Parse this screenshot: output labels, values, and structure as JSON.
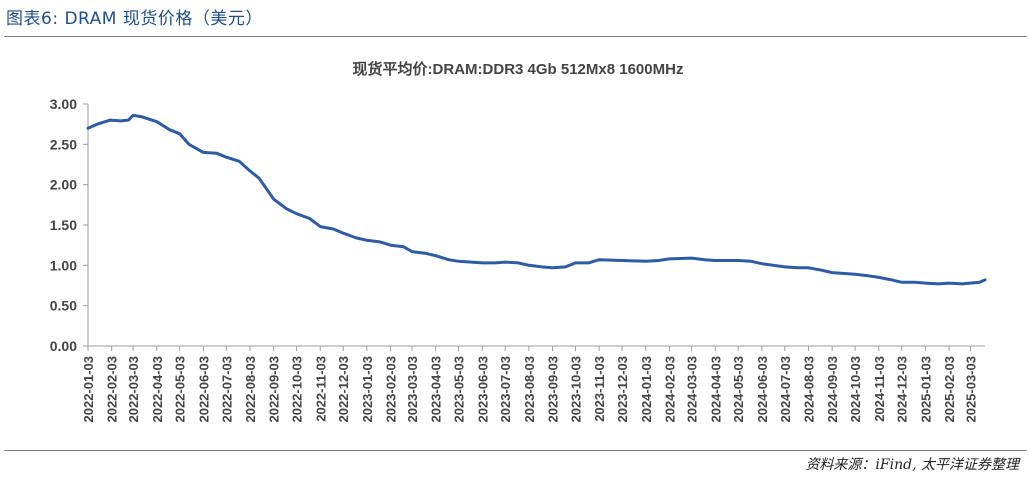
{
  "figure": {
    "caption": "图表6: DRAM 现货价格（美元）",
    "source": "资料来源：iFind, 太平洋证券整理"
  },
  "colors": {
    "line": "#2d5ba6",
    "axis": "#9e9e9e",
    "rule": "#7f7f7f",
    "caption": "#1f4e8c"
  },
  "chart_data": {
    "type": "line",
    "title": "现货平均价:DRAM:DDR3 4Gb 512Mx8 1600MHz",
    "xlabel": "",
    "ylabel": "",
    "ylim": [
      0,
      3
    ],
    "yticks": [
      "0.00",
      "0.50",
      "1.00",
      "1.50",
      "2.00",
      "2.50",
      "3.00"
    ],
    "xticks": [
      "2022-01-03",
      "2022-02-03",
      "2022-03-03",
      "2022-04-03",
      "2022-05-03",
      "2022-06-03",
      "2022-07-03",
      "2022-08-03",
      "2022-09-03",
      "2022-10-03",
      "2022-11-03",
      "2022-12-03",
      "2023-01-03",
      "2023-02-03",
      "2023-03-03",
      "2023-04-03",
      "2023-05-03",
      "2023-06-03",
      "2023-07-03",
      "2023-08-03",
      "2023-09-03",
      "2023-10-03",
      "2023-11-03",
      "2023-12-03",
      "2024-01-03",
      "2024-02-03",
      "2024-03-03",
      "2024-04-03",
      "2024-05-03",
      "2024-06-03",
      "2024-07-03",
      "2024-08-03",
      "2024-09-03",
      "2024-10-03",
      "2024-11-03",
      "2024-12-03",
      "2025-01-03",
      "2025-02-03",
      "2025-03-03"
    ],
    "grid": false,
    "legend": "none",
    "series": [
      {
        "name": "",
        "x": [
          "2022-01-03",
          "2022-01-15",
          "2022-02-01",
          "2022-02-15",
          "2022-02-25",
          "2022-03-03",
          "2022-03-15",
          "2022-04-03",
          "2022-04-20",
          "2022-05-03",
          "2022-05-15",
          "2022-06-03",
          "2022-06-20",
          "2022-07-03",
          "2022-07-20",
          "2022-08-03",
          "2022-08-15",
          "2022-09-03",
          "2022-09-20",
          "2022-10-03",
          "2022-10-20",
          "2022-11-03",
          "2022-11-20",
          "2022-12-03",
          "2022-12-20",
          "2023-01-03",
          "2023-01-20",
          "2023-02-03",
          "2023-02-20",
          "2023-03-03",
          "2023-03-20",
          "2023-04-03",
          "2023-04-20",
          "2023-05-03",
          "2023-06-03",
          "2023-06-20",
          "2023-07-03",
          "2023-07-20",
          "2023-08-03",
          "2023-08-20",
          "2023-09-03",
          "2023-09-20",
          "2023-10-03",
          "2023-10-20",
          "2023-11-03",
          "2023-12-03",
          "2024-01-03",
          "2024-01-20",
          "2024-02-03",
          "2024-03-03",
          "2024-03-20",
          "2024-04-03",
          "2024-05-03",
          "2024-05-20",
          "2024-06-03",
          "2024-07-03",
          "2024-07-20",
          "2024-08-03",
          "2024-08-20",
          "2024-09-03",
          "2024-10-03",
          "2024-10-20",
          "2024-11-03",
          "2024-11-20",
          "2024-12-03",
          "2024-12-20",
          "2025-01-03",
          "2025-01-20",
          "2025-02-03",
          "2025-02-20",
          "2025-03-03",
          "2025-03-15",
          "2025-03-22"
        ],
        "y": [
          2.7,
          2.75,
          2.8,
          2.79,
          2.8,
          2.86,
          2.84,
          2.78,
          2.68,
          2.63,
          2.5,
          2.4,
          2.39,
          2.34,
          2.29,
          2.17,
          2.08,
          1.82,
          1.7,
          1.64,
          1.58,
          1.48,
          1.45,
          1.4,
          1.34,
          1.31,
          1.29,
          1.25,
          1.23,
          1.17,
          1.15,
          1.12,
          1.07,
          1.05,
          1.03,
          1.03,
          1.04,
          1.03,
          1.0,
          0.98,
          0.97,
          0.98,
          1.03,
          1.03,
          1.07,
          1.06,
          1.05,
          1.06,
          1.08,
          1.09,
          1.07,
          1.06,
          1.06,
          1.05,
          1.02,
          0.98,
          0.97,
          0.97,
          0.94,
          0.91,
          0.89,
          0.87,
          0.85,
          0.82,
          0.79,
          0.79,
          0.78,
          0.77,
          0.78,
          0.77,
          0.78,
          0.79,
          0.82
        ]
      }
    ]
  }
}
